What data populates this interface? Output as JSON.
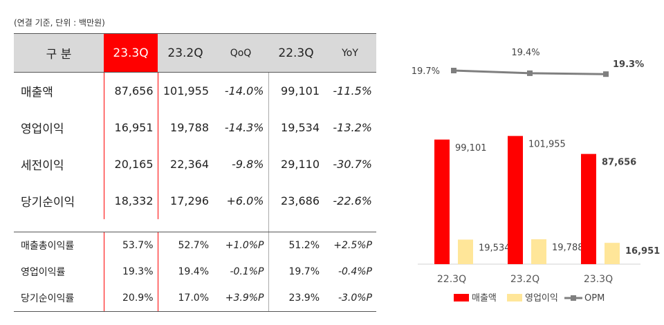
{
  "unit_note": "(연결 기준, 단위 : 백만원)",
  "table": {
    "headers": [
      "구 분",
      "23.3Q",
      "23.2Q",
      "QoQ",
      "22.3Q",
      "YoY"
    ],
    "main_rows": [
      {
        "label": "매출액",
        "cells": [
          "87,656",
          "101,955",
          "-14.0%",
          "99,101",
          "-11.5%"
        ]
      },
      {
        "label": "영업이익",
        "cells": [
          "16,951",
          "19,788",
          "-14.3%",
          "19,534",
          "-13.2%"
        ]
      },
      {
        "label": "세전이익",
        "cells": [
          "20,165",
          "22,364",
          "-9.8%",
          "29,110",
          "-30.7%"
        ]
      },
      {
        "label": "당기순이익",
        "cells": [
          "18,332",
          "17,296",
          "+6.0%",
          "23,686",
          "-22.6%"
        ]
      }
    ],
    "ratio_rows": [
      {
        "label": "매출총이익률",
        "cells": [
          "53.7%",
          "52.7%",
          "+1.0%P",
          "51.2%",
          "+2.5%P"
        ]
      },
      {
        "label": "영업이익률",
        "cells": [
          "19.3%",
          "19.4%",
          "-0.1%P",
          "19.7%",
          "-0.4%P"
        ]
      },
      {
        "label": "당기순이익률",
        "cells": [
          "20.9%",
          "17.0%",
          "+3.9%P",
          "23.9%",
          "-3.0%P"
        ]
      }
    ]
  },
  "chart_data": {
    "type": "bar",
    "categories": [
      "22.3Q",
      "23.2Q",
      "23.3Q"
    ],
    "series": [
      {
        "name": "매출액",
        "values": [
          99101,
          101955,
          87656
        ],
        "labels": [
          "99,101",
          "101,955",
          "87,656"
        ],
        "color": "#ff0000"
      },
      {
        "name": "영업이익",
        "values": [
          19534,
          19788,
          16951
        ],
        "labels": [
          "19,534",
          "19,788",
          "16,951"
        ],
        "color": "#ffe699"
      }
    ],
    "line_series": {
      "name": "OPM",
      "values": [
        19.7,
        19.4,
        19.3
      ],
      "labels": [
        "19.7%",
        "19.4%",
        "19.3%"
      ],
      "color": "#7f7f7f"
    },
    "ylim": [
      0,
      110000
    ],
    "legend": [
      "매출액",
      "영업이익",
      "OPM"
    ],
    "legend_position": "bottom"
  }
}
